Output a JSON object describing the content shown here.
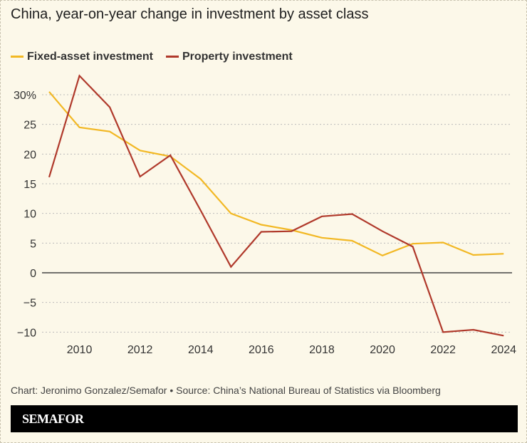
{
  "chart_data": {
    "type": "line",
    "title": "China, year-on-year change in investment by asset class",
    "x": [
      2009,
      2010,
      2011,
      2012,
      2013,
      2014,
      2015,
      2016,
      2017,
      2018,
      2019,
      2020,
      2021,
      2022,
      2023,
      2024
    ],
    "series": [
      {
        "name": "Fixed-asset investment",
        "color": "#f2b824",
        "values": [
          30.5,
          24.5,
          23.8,
          20.6,
          19.6,
          15.8,
          10.0,
          8.1,
          7.2,
          5.9,
          5.4,
          2.9,
          4.9,
          5.1,
          3.0,
          3.2
        ]
      },
      {
        "name": "Property investment",
        "color": "#b0392b",
        "values": [
          16.1,
          33.2,
          27.9,
          16.2,
          19.8,
          10.5,
          1.0,
          6.9,
          7.0,
          9.5,
          9.9,
          7.0,
          4.4,
          -10.0,
          -9.6,
          -10.6
        ]
      }
    ],
    "yticks": [
      30,
      25,
      20,
      15,
      10,
      5,
      0,
      -5,
      -10
    ],
    "ytick_labels": [
      "30%",
      "25",
      "20",
      "15",
      "10",
      "5",
      "0",
      "−5",
      "−10"
    ],
    "xticks": [
      2010,
      2012,
      2014,
      2016,
      2018,
      2020,
      2022,
      2024
    ],
    "xtick_labels": [
      "2010",
      "2012",
      "2014",
      "2016",
      "2018",
      "2020",
      "2022",
      "2024"
    ],
    "ylim": [
      -10,
      30
    ],
    "xlim": [
      2009,
      2024
    ],
    "grid": "horizontal dotted",
    "legend": "top-left"
  },
  "source": "Chart: Jeronimo Gonzalez/Semafor • Source: China’s National Bureau of Statistics via Bloomberg",
  "brand": "SEMAFOR"
}
